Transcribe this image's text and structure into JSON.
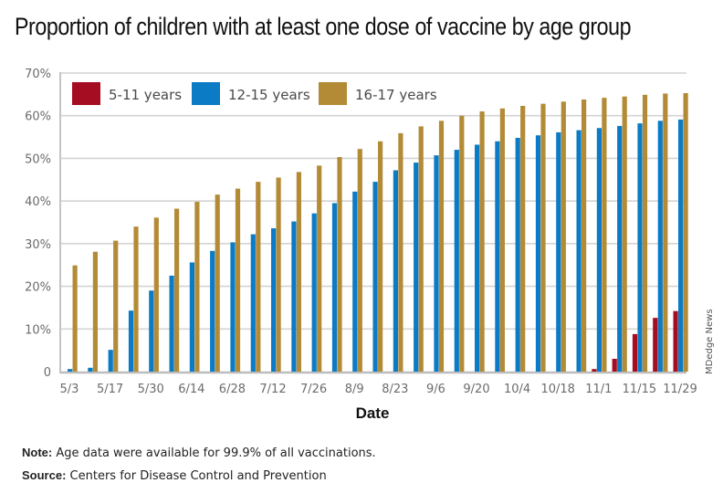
{
  "chart_data": {
    "type": "bar",
    "title": "Proportion of children with at least one dose of vaccine by age group",
    "xlabel": "Date",
    "ylabel": "",
    "ylim": [
      0,
      70
    ],
    "yticks": [
      0,
      10,
      20,
      30,
      40,
      50,
      60,
      70
    ],
    "ytick_labels": [
      "0",
      "10%",
      "20%",
      "30%",
      "40%",
      "50%",
      "60%",
      "70%"
    ],
    "grid": true,
    "legend_position": "top-left",
    "categories": [
      "5/3",
      "",
      "5/17",
      "",
      "5/30",
      "",
      "6/14",
      "",
      "6/28",
      "",
      "7/12",
      "",
      "7/26",
      "",
      "8/9",
      "",
      "8/23",
      "",
      "9/6",
      "",
      "9/20",
      "",
      "10/4",
      "",
      "10/18",
      "",
      "11/1",
      "",
      "11/15",
      "",
      "11/29"
    ],
    "series": [
      {
        "name": "5-11 years",
        "color": "#a50d22",
        "values": [
          0,
          0,
          0,
          0,
          0,
          0,
          0,
          0,
          0,
          0,
          0,
          0,
          0,
          0,
          0,
          0,
          0,
          0,
          0,
          0,
          0,
          0,
          0,
          0,
          0,
          0,
          0.6,
          3.0,
          8.8,
          12.6,
          14.2
        ]
      },
      {
        "name": "12-15 years",
        "color": "#0a7bc4",
        "values": [
          0.6,
          0.9,
          5.1,
          14.3,
          19.0,
          22.5,
          25.6,
          28.3,
          30.3,
          32.2,
          33.6,
          35.2,
          37.1,
          39.5,
          42.2,
          44.5,
          47.2,
          49.0,
          50.7,
          52.0,
          53.2,
          54.0,
          54.8,
          55.4,
          56.1,
          56.6,
          57.1,
          57.6,
          58.2,
          58.8,
          59.1
        ]
      },
      {
        "name": "16-17 years",
        "color": "#b38b37",
        "values": [
          24.9,
          28.1,
          30.7,
          34.0,
          36.1,
          38.2,
          39.8,
          41.5,
          42.9,
          44.5,
          45.5,
          46.8,
          48.3,
          50.3,
          52.2,
          54.0,
          55.9,
          57.5,
          58.8,
          60.0,
          61.0,
          61.7,
          62.3,
          62.8,
          63.3,
          63.8,
          64.2,
          64.5,
          64.9,
          65.2,
          65.3
        ]
      }
    ],
    "credit": "MDedge News"
  },
  "footer": {
    "note_label": "Note:",
    "note_text": " Age data were available for 99.9% of all vaccinations.",
    "source_label": "Source:",
    "source_text": " Centers for Disease Control and Prevention"
  }
}
